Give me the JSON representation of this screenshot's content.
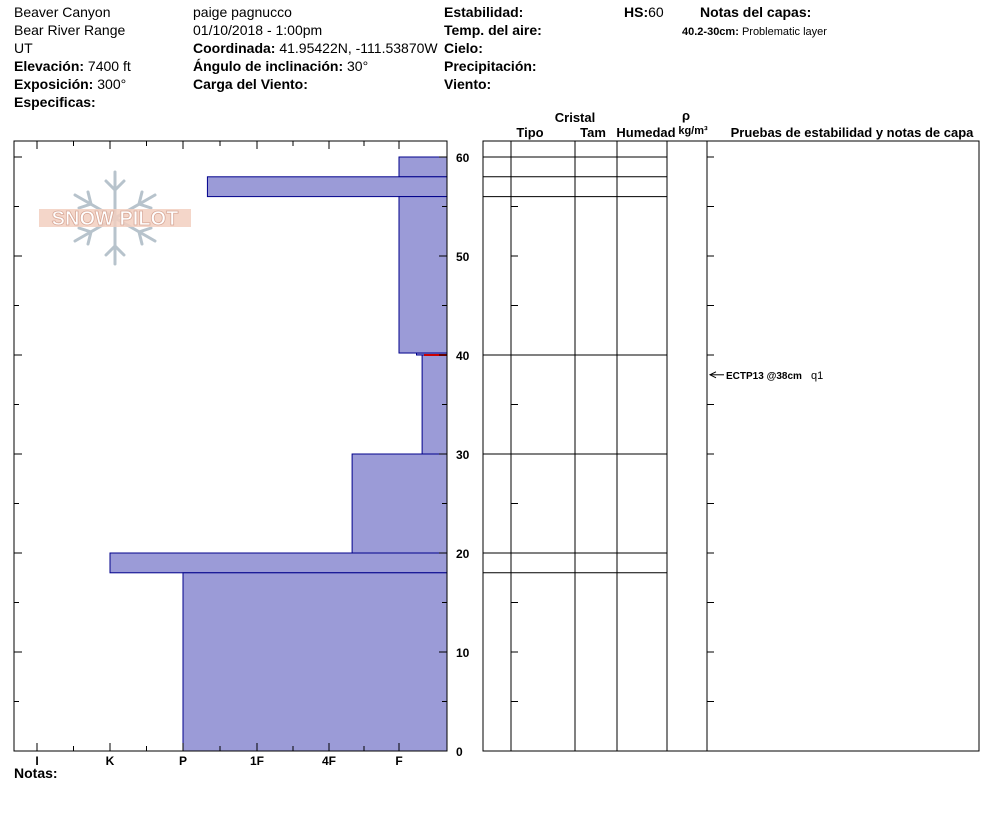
{
  "header": {
    "location": "Beaver Canyon",
    "range": "Bear River Range",
    "state": "UT",
    "elevation_label": "Elevación:",
    "elevation_value": "7400 ft",
    "aspect_label": "Exposición:",
    "aspect_value": "300°",
    "specifics_label": "Especificas:",
    "observer": "paige pagnucco",
    "datetime": "01/10/2018 - 1:00pm",
    "coord_label": "Coordinada:",
    "coord_value": "41.95422N, -111.53870W",
    "slope_label": "Ángulo de inclinación:",
    "slope_value": "30°",
    "wind_load_label": "Carga del Viento:",
    "stability_label": "Estabilidad:",
    "air_temp_label": "Temp. del aire:",
    "sky_label": "Cielo:",
    "precip_label": "Precipitación:",
    "wind_label": "Viento:",
    "hs_label": "HS:",
    "hs_value": "60",
    "layer_notes_label": "Notas del capas:",
    "layer_note_range": "40.2-30cm:",
    "layer_note_text": "Problematic layer"
  },
  "logo_text": "SNOW PILOT",
  "notes_label": "Notas:",
  "table_headers": {
    "crystal": "Cristal",
    "type": "Tipo",
    "size": "Tam",
    "moisture": "Humedad",
    "rho": "ρ",
    "density_unit": "kg/m³",
    "tests": "Pruebas de estabilidad y notas de capa"
  },
  "test_annotation": {
    "text": "ECTP13 @38cm",
    "quality": "q1",
    "depth": 38
  },
  "colors": {
    "bar_fill": "#9b9bd7",
    "bar_stroke": "#00008b",
    "weak_layer": "#cc0000"
  },
  "chart_data": {
    "type": "bar",
    "orientation": "horizontal",
    "y_range": [
      0,
      60
    ],
    "y_ticks": [
      0,
      10,
      20,
      30,
      40,
      50,
      60
    ],
    "hardness_scale": [
      "I",
      "K",
      "P",
      "1F",
      "4F",
      "F"
    ],
    "hardness_positions": {
      "I": 1,
      "K": 2,
      "P": 3,
      "1F": 4,
      "4F": 5,
      "F": 6
    },
    "layers": [
      {
        "top": 60,
        "bottom": 58,
        "hardness_value": 6
      },
      {
        "top": 58,
        "bottom": 56,
        "hardness_value": 3.33
      },
      {
        "top": 56,
        "bottom": 40.2,
        "hardness_value": 6
      },
      {
        "top": 40.2,
        "bottom": 40,
        "hardness_value": 6.25
      },
      {
        "top": 40,
        "bottom": 30,
        "hardness_value": 6.33
      },
      {
        "top": 30,
        "bottom": 20,
        "hardness_value": 5.33
      },
      {
        "top": 20,
        "bottom": 18,
        "hardness_value": 2
      },
      {
        "top": 18,
        "bottom": 0,
        "hardness_value": 3
      }
    ],
    "weak_layer_depth": 40
  }
}
